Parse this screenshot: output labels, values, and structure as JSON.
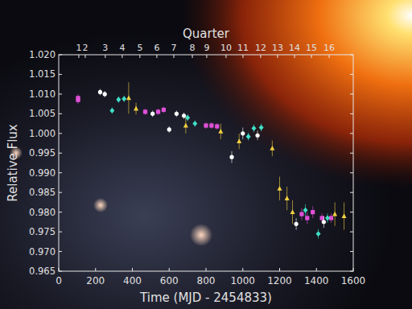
{
  "chart_data": {
    "type": "scatter",
    "xlabel": "Time (MJD - 2454833)",
    "ylabel": "Relative Flux",
    "x2label": "Quarter",
    "xlim": [
      0,
      1600
    ],
    "xticks": [
      0,
      200,
      400,
      600,
      800,
      1000,
      1200,
      1400,
      1600
    ],
    "ylim": [
      0.965,
      1.02
    ],
    "yticks": [
      {
        "value": 0.965,
        "label": "0.965"
      },
      {
        "value": 0.97,
        "label": "0.970"
      },
      {
        "value": 0.975,
        "label": "0.975"
      },
      {
        "value": 0.98,
        "label": "0.980"
      },
      {
        "value": 0.985,
        "label": "0.985"
      },
      {
        "value": 0.99,
        "label": "0.990"
      },
      {
        "value": 0.995,
        "label": "0.995"
      },
      {
        "value": 1.0,
        "label": "1.000"
      },
      {
        "value": 1.005,
        "label": "1.005"
      },
      {
        "value": 1.01,
        "label": "1.010"
      },
      {
        "value": 1.015,
        "label": "1.015"
      },
      {
        "value": 1.02,
        "label": "1.020"
      }
    ],
    "x2lim": [
      0,
      1600
    ],
    "x2ticks": [
      {
        "value": 109,
        "label": "1"
      },
      {
        "value": 144,
        "label": "2"
      },
      {
        "value": 253,
        "label": "3"
      },
      {
        "value": 345,
        "label": "4"
      },
      {
        "value": 441,
        "label": "5"
      },
      {
        "value": 533,
        "label": "6"
      },
      {
        "value": 625,
        "label": "7"
      },
      {
        "value": 726,
        "label": "8"
      },
      {
        "value": 804,
        "label": "9"
      },
      {
        "value": 909,
        "label": "10"
      },
      {
        "value": 1001,
        "label": "11"
      },
      {
        "value": 1097,
        "label": "12"
      },
      {
        "value": 1189,
        "label": "13"
      },
      {
        "value": 1281,
        "label": "14"
      },
      {
        "value": 1373,
        "label": "15"
      },
      {
        "value": 1469,
        "label": "16"
      }
    ],
    "grid": false,
    "series": [
      {
        "color": "#e050d8",
        "marker": "square",
        "x": [
          105,
          105,
          470,
          540,
          570,
          800,
          830,
          860,
          1320,
          1350,
          1380,
          1430,
          1480
        ],
        "values": [
          1.009,
          1.0085,
          1.0055,
          1.0055,
          1.006,
          1.002,
          1.002,
          1.0018,
          0.9795,
          0.9785,
          0.98,
          0.9785,
          0.9785
        ],
        "errors": [
          0.001,
          0.001,
          0.0008,
          0.0008,
          0.0008,
          0.0008,
          0.0008,
          0.0008,
          0.0015,
          0.0015,
          0.0015,
          0.0012,
          0.0012
        ]
      },
      {
        "color": "#ffffff",
        "marker": "circle",
        "x": [
          225,
          250,
          510,
          600,
          640,
          680,
          940,
          1000,
          1080,
          1290,
          1440
        ],
        "values": [
          1.0105,
          1.01,
          1.005,
          1.001,
          1.005,
          1.0045,
          0.994,
          1.0,
          0.9995,
          0.977,
          0.9775
        ],
        "errors": [
          0.0008,
          0.0008,
          0.0008,
          0.0008,
          0.0008,
          0.0008,
          0.0015,
          0.0015,
          0.0012,
          0.0015,
          0.0015
        ]
      },
      {
        "color": "#40e0c8",
        "marker": "diamond",
        "x": [
          290,
          325,
          355,
          700,
          740,
          1030,
          1060,
          1100,
          1340,
          1410,
          1460
        ],
        "values": [
          1.0058,
          1.0086,
          1.0088,
          1.004,
          1.0025,
          0.9992,
          1.0013,
          1.0015,
          0.9805,
          0.9745,
          0.9785
        ],
        "errors": [
          0.0008,
          0.0008,
          0.0008,
          0.0008,
          0.0008,
          0.001,
          0.001,
          0.001,
          0.0015,
          0.0012,
          0.0012
        ]
      },
      {
        "color": "#f0d040",
        "marker": "triangle",
        "x": [
          380,
          420,
          690,
          880,
          980,
          1160,
          1200,
          1240,
          1270,
          1500,
          1550
        ],
        "values": [
          1.009,
          1.0063,
          1.002,
          1.0005,
          0.998,
          0.9962,
          0.986,
          0.9835,
          0.98,
          0.9795,
          0.979
        ],
        "errors": [
          0.004,
          0.0015,
          0.002,
          0.002,
          0.002,
          0.002,
          0.003,
          0.003,
          0.003,
          0.003,
          0.0035
        ]
      }
    ]
  }
}
